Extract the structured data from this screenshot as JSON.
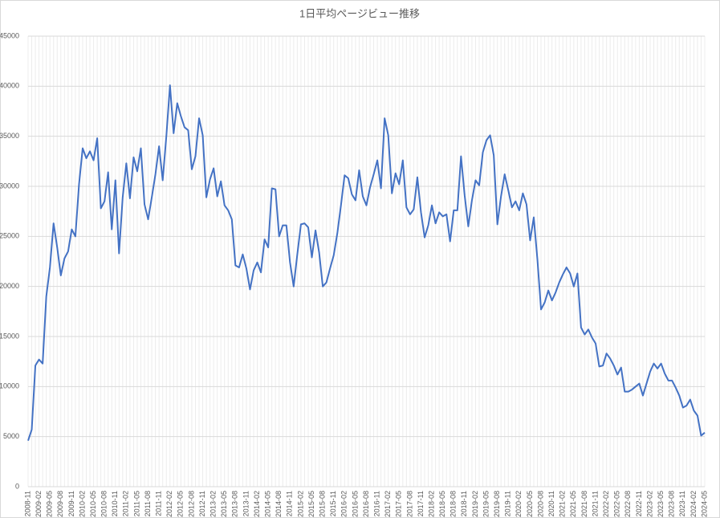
{
  "chart_data": {
    "type": "line",
    "title": "1日平均ページビュー推移",
    "categories": [
      "2008-11",
      null,
      null,
      "2009-02",
      null,
      null,
      "2009-05",
      null,
      null,
      "2009-08",
      null,
      null,
      "2009-11",
      null,
      null,
      "2010-02",
      null,
      null,
      "2010-05",
      null,
      null,
      "2010-08",
      null,
      null,
      "2010-11",
      null,
      null,
      "2011-02",
      null,
      null,
      "2011-05",
      null,
      null,
      "2011-08",
      null,
      null,
      "2011-11",
      null,
      null,
      "2012-02",
      null,
      null,
      "2012-05",
      null,
      null,
      "2012-08",
      null,
      null,
      "2012-11",
      null,
      null,
      "2013-02",
      null,
      null,
      "2013-05",
      null,
      null,
      "2013-08",
      null,
      null,
      "2013-11",
      null,
      null,
      "2014-02",
      null,
      null,
      "2014-05",
      null,
      null,
      "2014-08",
      null,
      null,
      "2014-11",
      null,
      null,
      "2015-02",
      null,
      null,
      "2015-05",
      null,
      null,
      "2015-08",
      null,
      null,
      "2015-11",
      null,
      null,
      "2016-02",
      null,
      null,
      "2016-05",
      null,
      null,
      "2016-08",
      null,
      null,
      "2016-11",
      null,
      null,
      "2017-02",
      null,
      null,
      "2017-05",
      null,
      null,
      "2017-08",
      null,
      null,
      "2017-11",
      null,
      null,
      "2018-02",
      null,
      null,
      "2018-05",
      null,
      null,
      "2018-08",
      null,
      null,
      "2018-11",
      null,
      null,
      "2019-02",
      null,
      null,
      "2019-05",
      null,
      null,
      "2019-08",
      null,
      null,
      "2019-11",
      null,
      null,
      "2020-02",
      null,
      null,
      "2020-05",
      null,
      null,
      "2020-08",
      null,
      null,
      "2020-11",
      null,
      null,
      "2021-02",
      null,
      null,
      "2021-05",
      null,
      null,
      "2021-08",
      null,
      null,
      "2021-11",
      null,
      null,
      "2022-02",
      null,
      null,
      "2022-05",
      null,
      null,
      "2022-08",
      null,
      null,
      "2022-11",
      null,
      null,
      "2023-02",
      null,
      null,
      "2023-05",
      null,
      null,
      "2023-08",
      null,
      null,
      "2023-11",
      null,
      null,
      "2024-02",
      null,
      null,
      "2024-05"
    ],
    "values": [
      4600,
      5700,
      12100,
      12700,
      12300,
      19000,
      21900,
      26300,
      23900,
      21100,
      22800,
      23500,
      25700,
      25000,
      30200,
      33800,
      32800,
      33500,
      32600,
      34800,
      27800,
      28500,
      31400,
      25700,
      30600,
      23300,
      28900,
      32300,
      28800,
      32900,
      31500,
      33800,
      28200,
      26700,
      28900,
      31200,
      34000,
      30600,
      35000,
      40100,
      35300,
      38300,
      37000,
      35900,
      35600,
      31700,
      33000,
      36800,
      35100,
      28900,
      30700,
      31800,
      29000,
      30500,
      28100,
      27600,
      26700,
      22100,
      21900,
      23200,
      21800,
      19700,
      21600,
      22400,
      21400,
      24700,
      23900,
      29800,
      29700,
      25000,
      26100,
      26100,
      22400,
      20000,
      23200,
      26200,
      26300,
      25900,
      22900,
      25600,
      23400,
      20000,
      20400,
      21800,
      23100,
      25300,
      28100,
      31100,
      30800,
      29200,
      28600,
      31600,
      29000,
      28100,
      29900,
      31200,
      32600,
      29800,
      36800,
      35100,
      29300,
      31300,
      30200,
      32600,
      27900,
      27200,
      27700,
      30900,
      27400,
      24900,
      26100,
      28100,
      26300,
      27400,
      27000,
      27200,
      24500,
      27600,
      27600,
      33000,
      29100,
      26000,
      28600,
      30600,
      30100,
      33400,
      34600,
      35100,
      33100,
      26200,
      29000,
      31200,
      29600,
      27900,
      28500,
      27600,
      29300,
      28200,
      24600,
      26900,
      22700,
      17700,
      18400,
      19600,
      18600,
      19400,
      20400,
      21200,
      21900,
      21300,
      20000,
      21300,
      15900,
      15200,
      15700,
      14900,
      14300,
      12000,
      12100,
      13300,
      12800,
      12100,
      11200,
      11900,
      9500,
      9500,
      9700,
      10000,
      10300,
      9100,
      10300,
      11500,
      12300,
      11800,
      12300,
      11300,
      10600,
      10600,
      9900,
      9100,
      7900,
      8100,
      8700,
      7600,
      7100,
      5100,
      5400
    ],
    "color": "#4472c4",
    "ylim": [
      0,
      45000
    ],
    "yticks": [
      0,
      5000,
      10000,
      15000,
      20000,
      25000,
      30000,
      35000,
      40000,
      45000
    ],
    "grid": true
  }
}
